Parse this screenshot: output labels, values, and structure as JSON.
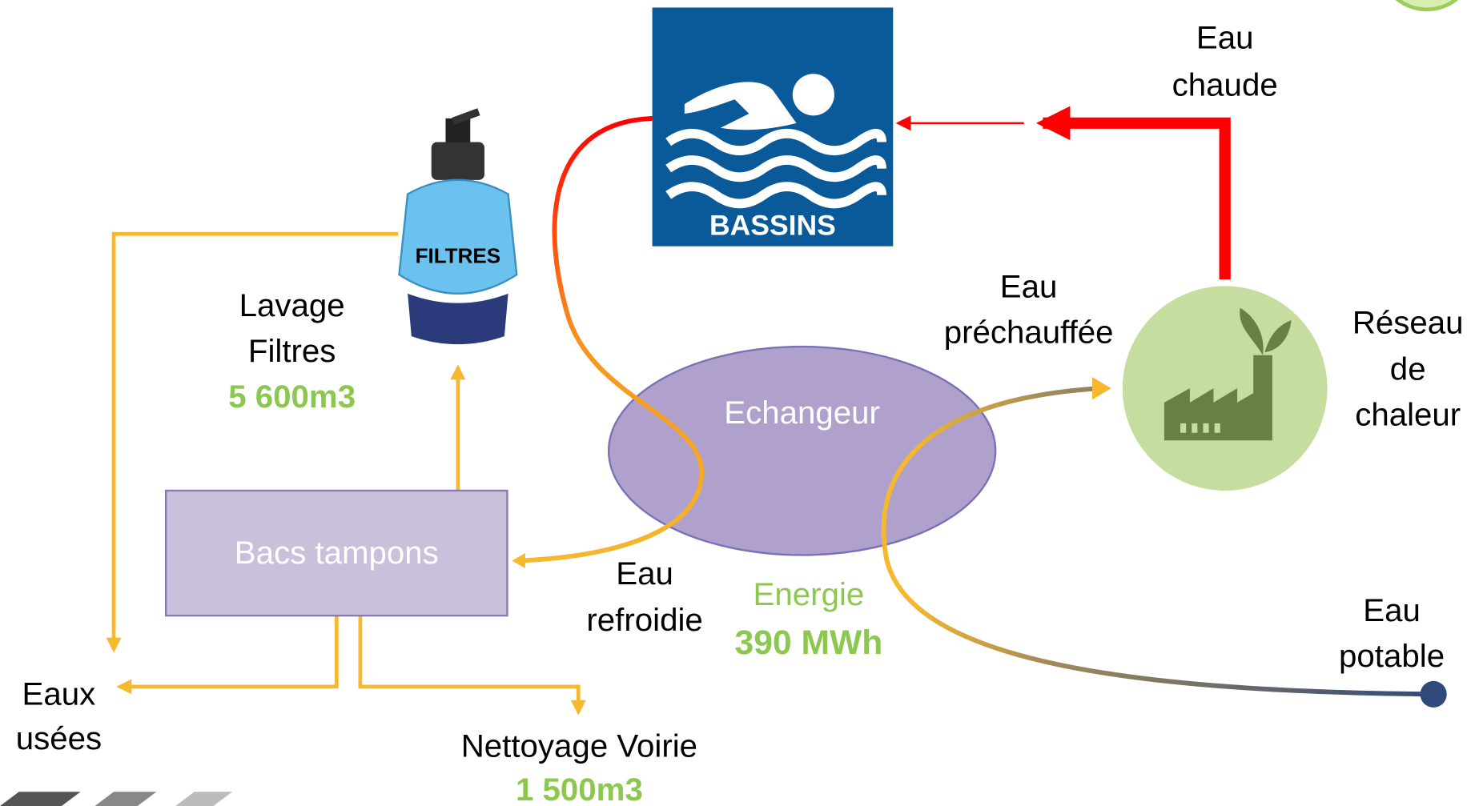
{
  "nodes": {
    "bassins": {
      "label": "BASSINS"
    },
    "filtres": {
      "label": "FILTRES"
    },
    "bacs": {
      "label": "Bacs tampons"
    },
    "echangeur": {
      "label": "Echangeur"
    },
    "reseau": {
      "lines": [
        "Réseau",
        "de",
        "chaleur"
      ]
    }
  },
  "flows": {
    "eau_chaude": {
      "lines": [
        "Eau",
        "chaude"
      ]
    },
    "eau_prechauffee": {
      "lines": [
        "Eau",
        "préchauffée"
      ]
    },
    "eau_refroidie": {
      "lines": [
        "Eau",
        "refroidie"
      ]
    },
    "eau_potable": {
      "lines": [
        "Eau",
        "potable"
      ]
    },
    "eaux_usees": {
      "lines": [
        "Eaux",
        "usées"
      ]
    },
    "lavage": {
      "lines": [
        "Lavage",
        "Filtres"
      ],
      "amount": "5 600m3"
    },
    "nettoyage": {
      "label": "Nettoyage Voirie",
      "amount": "1 500m3"
    },
    "energie": {
      "label": "Energie",
      "amount": "390 MWh"
    }
  }
}
